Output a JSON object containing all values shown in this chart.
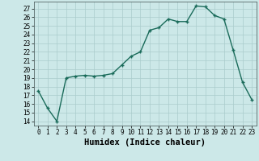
{
  "x": [
    0,
    1,
    2,
    3,
    4,
    5,
    6,
    7,
    8,
    9,
    10,
    11,
    12,
    13,
    14,
    15,
    16,
    17,
    18,
    19,
    20,
    21,
    22,
    23
  ],
  "y": [
    17.5,
    15.5,
    14.0,
    19.0,
    19.2,
    19.3,
    19.2,
    19.3,
    19.5,
    20.5,
    21.5,
    22.0,
    24.5,
    24.8,
    25.8,
    25.5,
    25.5,
    27.3,
    27.2,
    26.2,
    25.8,
    22.2,
    18.5,
    16.5
  ],
  "line_color": "#1a6b5a",
  "marker": "+",
  "markersize": 3.5,
  "linewidth": 1.0,
  "xlabel": "Humidex (Indice chaleur)",
  "xlim": [
    -0.5,
    23.5
  ],
  "ylim": [
    13.5,
    27.8
  ],
  "yticks": [
    14,
    15,
    16,
    17,
    18,
    19,
    20,
    21,
    22,
    23,
    24,
    25,
    26,
    27
  ],
  "xticks": [
    0,
    1,
    2,
    3,
    4,
    5,
    6,
    7,
    8,
    9,
    10,
    11,
    12,
    13,
    14,
    15,
    16,
    17,
    18,
    19,
    20,
    21,
    22,
    23
  ],
  "bg_color": "#cce8e8",
  "grid_color": "#aacccc",
  "tick_label_fontsize": 5.5,
  "xlabel_fontsize": 7.5
}
